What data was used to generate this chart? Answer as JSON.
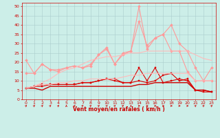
{
  "xlabel": "Vent moyen/en rafales ( km/h )",
  "bg_color": "#cceee8",
  "grid_color": "#aacccc",
  "x": [
    0,
    1,
    2,
    3,
    4,
    5,
    6,
    7,
    8,
    9,
    10,
    11,
    12,
    13,
    14,
    15,
    16,
    17,
    18,
    19,
    20,
    21,
    22,
    23
  ],
  "ylim": [
    0,
    52
  ],
  "yticks": [
    0,
    5,
    10,
    15,
    20,
    25,
    30,
    35,
    40,
    45,
    50
  ],
  "series": [
    {
      "y": [
        14,
        14,
        19,
        16,
        15,
        17,
        18,
        17,
        19,
        24,
        28,
        19,
        25,
        26,
        50,
        27,
        33,
        35,
        40,
        30,
        26,
        17,
        10,
        10
      ],
      "color": "#ff9999",
      "marker": "D",
      "lw": 0.8,
      "ms": 2.0
    },
    {
      "y": [
        21,
        14,
        19,
        16,
        16,
        17,
        18,
        17,
        18,
        24,
        27,
        19,
        24,
        26,
        42,
        29,
        33,
        35,
        26,
        26,
        15,
        10,
        10,
        17
      ],
      "color": "#ff9999",
      "marker": "D",
      "lw": 0.8,
      "ms": 2.0
    },
    {
      "y": [
        6,
        7,
        8,
        8,
        8,
        8,
        8,
        9,
        9,
        10,
        11,
        11,
        9,
        9,
        17,
        10,
        17,
        9,
        10,
        11,
        10,
        5,
        5,
        4
      ],
      "color": "#dd0000",
      "marker": "s",
      "lw": 0.8,
      "ms": 2.0
    },
    {
      "y": [
        6,
        7,
        7,
        8,
        8,
        8,
        8,
        9,
        9,
        10,
        11,
        10,
        9,
        9,
        10,
        9,
        10,
        13,
        14,
        10,
        11,
        5,
        4,
        4
      ],
      "color": "#dd0000",
      "marker": "s",
      "lw": 0.8,
      "ms": 2.0
    },
    {
      "y": [
        6,
        6,
        5,
        7,
        7,
        7,
        7,
        7,
        7,
        7,
        7,
        7,
        7,
        7,
        8,
        8,
        9,
        9,
        9,
        9,
        9,
        5,
        5,
        4
      ],
      "color": "#cc0000",
      "marker": null,
      "lw": 1.0,
      "ms": 0
    },
    {
      "y": [
        6,
        7,
        8,
        8,
        9,
        9,
        10,
        10,
        11,
        11,
        11,
        11,
        12,
        13,
        13,
        14,
        14,
        14,
        14,
        14,
        14,
        10,
        10,
        10
      ],
      "color": "#ffbbbb",
      "marker": null,
      "lw": 0.8,
      "ms": 0
    },
    {
      "y": [
        6,
        7,
        9,
        11,
        14,
        16,
        17,
        19,
        21,
        22,
        23,
        23,
        24,
        25,
        25,
        26,
        26,
        26,
        26,
        26,
        26,
        24,
        22,
        21
      ],
      "color": "#ffbbbb",
      "marker": null,
      "lw": 0.8,
      "ms": 0
    }
  ],
  "wind_angles": [
    45,
    45,
    45,
    45,
    45,
    90,
    45,
    45,
    45,
    45,
    45,
    45,
    45,
    90,
    0,
    0,
    0,
    0,
    0,
    0,
    0,
    45,
    45,
    45
  ]
}
